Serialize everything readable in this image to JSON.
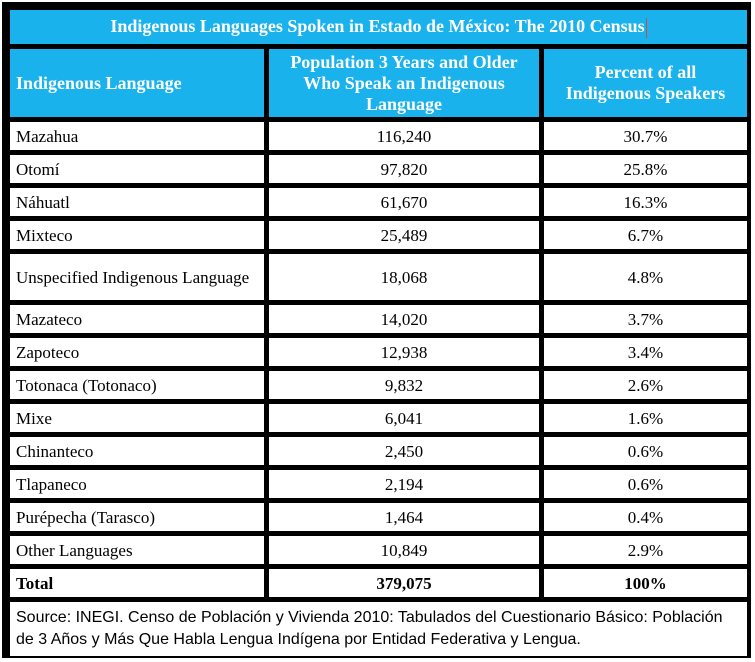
{
  "title": "Indigenous Languages Spoken in Estado de México: The 2010 Census",
  "headers": {
    "language": "Indigenous Language",
    "population": "Population 3 Years and Older Who Speak an Indigenous Language",
    "percent": "Percent of all Indigenous Speakers"
  },
  "rows": [
    {
      "language": "Mazahua",
      "population": "116,240",
      "percent": "30.7%"
    },
    {
      "language": "Otomí",
      "population": "97,820",
      "percent": "25.8%"
    },
    {
      "language": "Náhuatl",
      "population": "61,670",
      "percent": "16.3%"
    },
    {
      "language": "Mixteco",
      "population": "25,489",
      "percent": "6.7%"
    },
    {
      "language": "Unspecified Indigenous Language",
      "population": "18,068",
      "percent": "4.8%"
    },
    {
      "language": "Mazateco",
      "population": "14,020",
      "percent": "3.7%"
    },
    {
      "language": "Zapoteco",
      "population": "12,938",
      "percent": "3.4%"
    },
    {
      "language": "Totonaca (Totonaco)",
      "population": "9,832",
      "percent": "2.6%"
    },
    {
      "language": "Mixe",
      "population": "6,041",
      "percent": "1.6%"
    },
    {
      "language": "Chinanteco",
      "population": "2,450",
      "percent": "0.6%"
    },
    {
      "language": "Tlapaneco",
      "population": "2,194",
      "percent": "0.6%"
    },
    {
      "language": "Purépecha (Tarasco)",
      "population": "1,464",
      "percent": "0.4%"
    },
    {
      "language": "Other Languages",
      "population": "10,849",
      "percent": "2.9%"
    }
  ],
  "total": {
    "label": "Total",
    "population": "379,075",
    "percent": "100%"
  },
  "source": "Source: INEGI. Censo de Población y Vivienda 2010: Tabulados del Cuestionario Básico: Población de 3 Años y Más Que Habla Lengua Indígena por Entidad Federativa y Lengua.",
  "colors": {
    "header_bg": "#1ab2ec",
    "header_text": "#ffffff",
    "border": "#000000"
  }
}
